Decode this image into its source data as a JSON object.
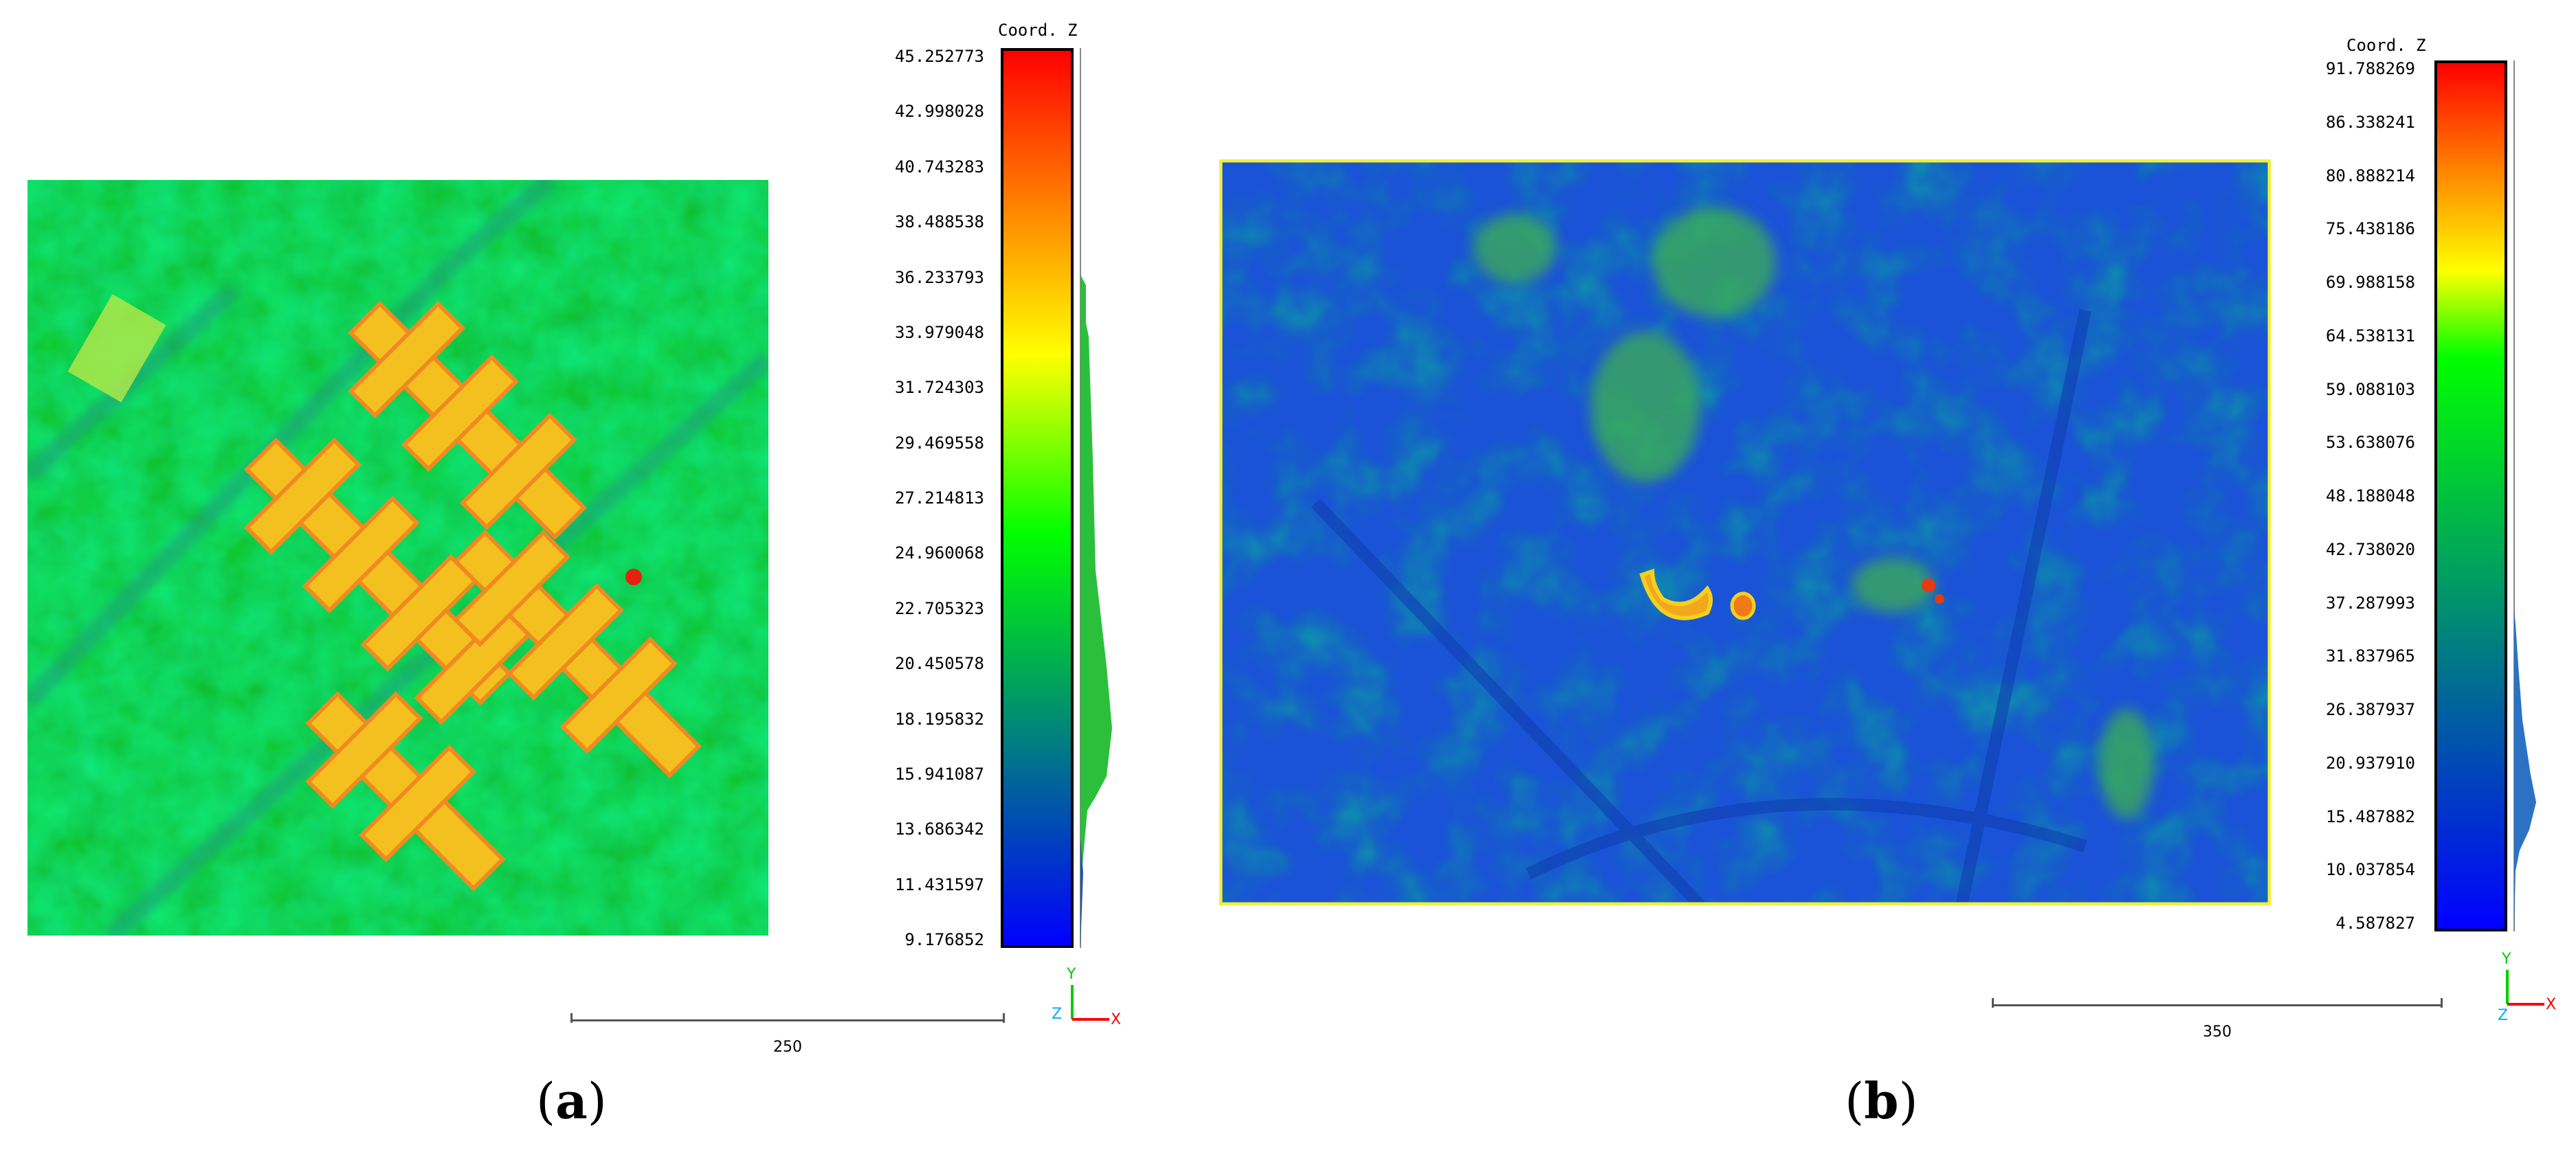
{
  "panel_a": {
    "colorbar": {
      "title": "Coord. Z",
      "ticks": [
        "45.252773",
        "42.998028",
        "40.743283",
        "38.488538",
        "36.233793",
        "33.979048",
        "31.724303",
        "29.469558",
        "27.214813",
        "24.960068",
        "22.705323",
        "20.450578",
        "18.195832",
        "15.941087",
        "13.686342",
        "11.431597",
        "9.176852"
      ]
    },
    "scale_label": "250",
    "axes": {
      "y": "Y",
      "z": "Z",
      "x": "X"
    },
    "caption": {
      "open": "(",
      "letter": "a",
      "close": ")"
    }
  },
  "panel_b": {
    "colorbar": {
      "title": "Coord. Z",
      "ticks": [
        "91.788269",
        "86.338241",
        "80.888214",
        "75.438186",
        "69.988158",
        "64.538131",
        "59.088103",
        "53.638076",
        "48.188048",
        "42.738020",
        "37.287993",
        "31.837965",
        "26.387937",
        "20.937910",
        "15.487882",
        "10.037854",
        "4.587827"
      ]
    },
    "scale_label": "350",
    "axes": {
      "y": "Y",
      "z": "Z",
      "x": "X"
    },
    "caption": {
      "open": "(",
      "letter": "b",
      "close": ")"
    }
  },
  "colors": {
    "colormap": [
      "#0000ff",
      "#00ff00",
      "#ffff00",
      "#ff0000"
    ],
    "axis_x": "#ff0000",
    "axis_y": "#00cc00",
    "axis_z": "#00aaff"
  }
}
